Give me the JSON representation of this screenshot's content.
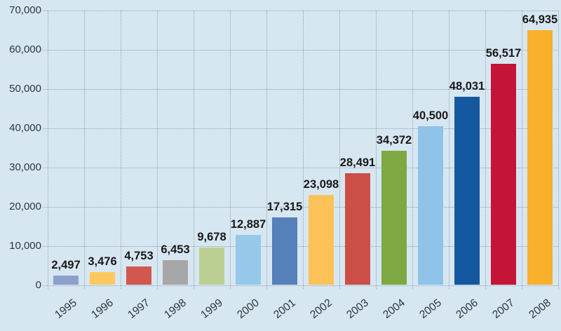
{
  "chart_data": {
    "type": "bar",
    "title": "",
    "xlabel": "",
    "ylabel": "",
    "categories": [
      "1995",
      "1996",
      "1997",
      "1998",
      "1999",
      "2000",
      "2001",
      "2002",
      "2003",
      "2004",
      "2005",
      "2006",
      "2007",
      "2008"
    ],
    "values": [
      2497,
      3476,
      4753,
      6453,
      9678,
      12887,
      17315,
      23098,
      28491,
      34372,
      40500,
      48031,
      56517,
      64935
    ],
    "value_labels": [
      "2,497",
      "3,476",
      "4,753",
      "6,453",
      "9,678",
      "12,887",
      "17,315",
      "23,098",
      "28,491",
      "34,372",
      "40,500",
      "48,031",
      "56,517",
      "64,935"
    ],
    "bar_colors": [
      "#8da0cb",
      "#fdc95f",
      "#d2574e",
      "#a7a7a7",
      "#bccf92",
      "#96c8ea",
      "#5580b9",
      "#fcc257",
      "#cb4f47",
      "#7ea841",
      "#8fc3e8",
      "#1459a0",
      "#c41438",
      "#f9b02c"
    ],
    "ylim": [
      0,
      70000
    ],
    "ytick_step": 10000,
    "ytick_labels": [
      "0",
      "10,000",
      "20,000",
      "30,000",
      "40,000",
      "50,000",
      "60,000",
      "70,000"
    ],
    "grid": "horizontal and vertical dotted gridlines, ticks extend past axes",
    "legend": "none",
    "background_color": "#d7e7f2",
    "gridline_color": "#90a3b3",
    "tick_label_color": "#2d353c",
    "value_label_color": "#191919"
  }
}
